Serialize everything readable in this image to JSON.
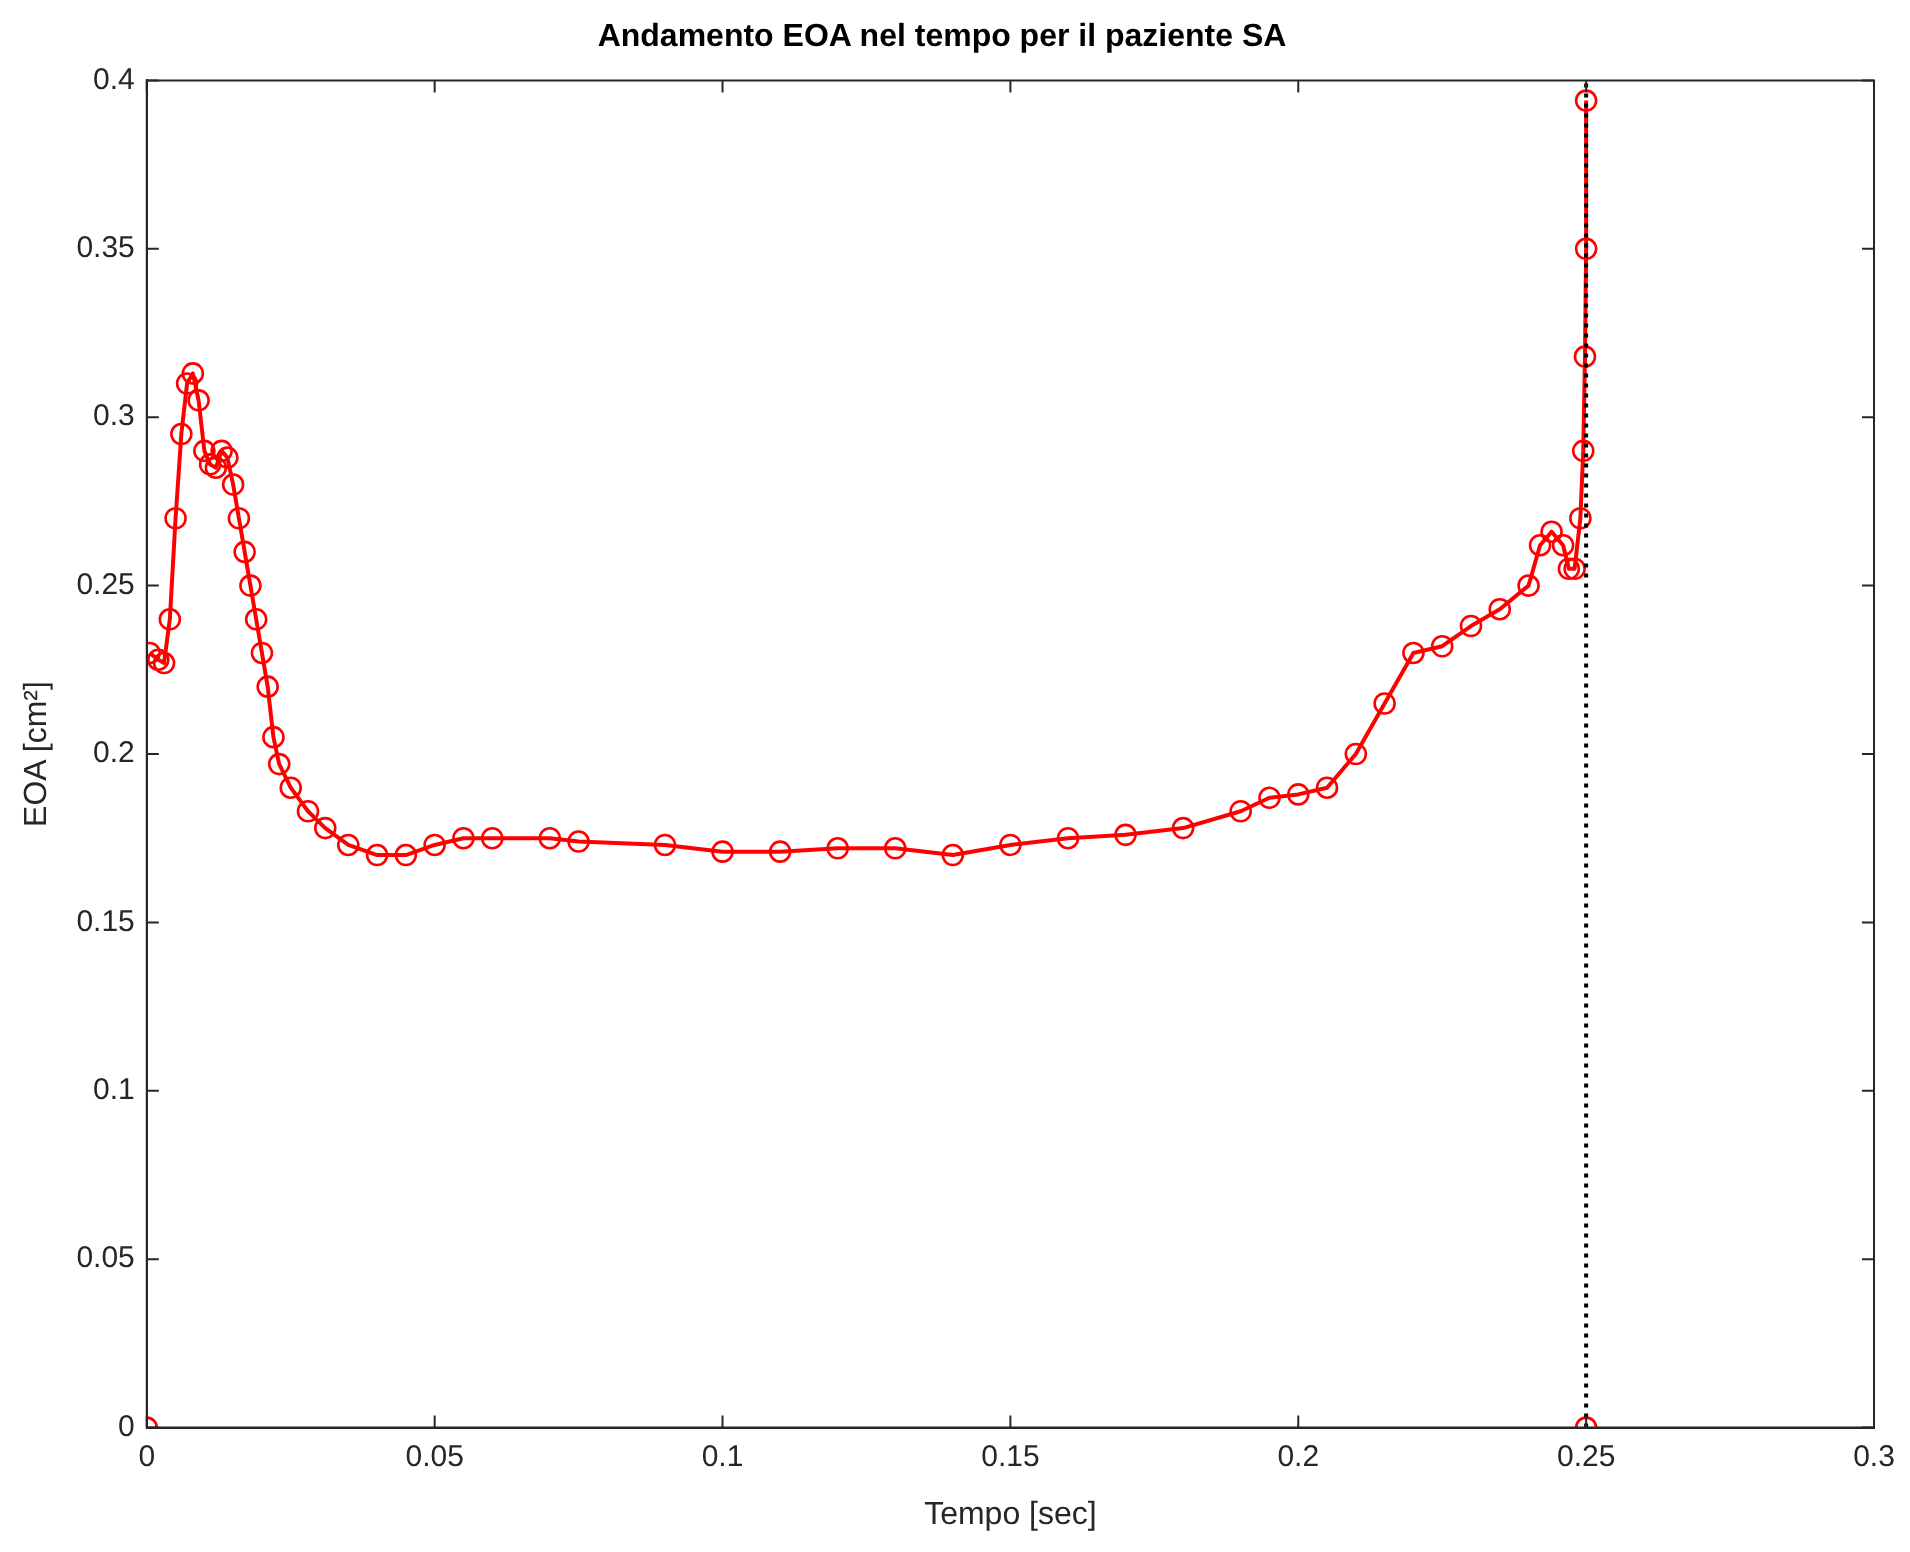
{
  "chart_data": {
    "type": "line",
    "title": "Andamento EOA nel tempo per il paziente SA",
    "xlabel": "Tempo [sec]",
    "ylabel": "EOA [cm²]",
    "xlim": [
      0,
      0.3
    ],
    "xticks": [
      0,
      0.05,
      0.1,
      0.15,
      0.2,
      0.25,
      0.3
    ],
    "ylim": [
      0,
      0.4
    ],
    "yticks": [
      0,
      0.05,
      0.1,
      0.15,
      0.2,
      0.25,
      0.3,
      0.35,
      0.4
    ],
    "grid": false,
    "legend": false,
    "ref_lines": [
      {
        "axis": "x",
        "value": 0.25,
        "color": "#000000",
        "line_style": "dotted"
      }
    ],
    "series": [
      {
        "color": "#ff0000",
        "marker": "circle",
        "line_style": "solid",
        "x": [
          0.0005,
          0.002,
          0.003,
          0.004,
          0.005,
          0.006,
          0.007,
          0.008,
          0.009,
          0.01,
          0.011,
          0.012,
          0.013,
          0.014,
          0.015,
          0.016,
          0.017,
          0.018,
          0.019,
          0.02,
          0.021,
          0.022,
          0.023,
          0.025,
          0.028,
          0.031,
          0.035,
          0.04,
          0.045,
          0.05,
          0.055,
          0.06,
          0.07,
          0.075,
          0.09,
          0.1,
          0.11,
          0.12,
          0.13,
          0.14,
          0.15,
          0.16,
          0.17,
          0.18,
          0.19,
          0.195,
          0.2,
          0.205,
          0.21,
          0.215,
          0.22,
          0.225,
          0.23,
          0.235,
          0.24,
          0.242,
          0.244,
          0.246,
          0.247,
          0.248,
          0.249,
          0.2495,
          0.2498,
          0.25,
          0.25
        ],
        "values": [
          0.23,
          0.228,
          0.227,
          0.24,
          0.27,
          0.295,
          0.31,
          0.313,
          0.305,
          0.29,
          0.286,
          0.285,
          0.29,
          0.288,
          0.28,
          0.27,
          0.26,
          0.25,
          0.24,
          0.23,
          0.22,
          0.205,
          0.197,
          0.19,
          0.183,
          0.178,
          0.173,
          0.17,
          0.17,
          0.173,
          0.175,
          0.175,
          0.175,
          0.174,
          0.173,
          0.171,
          0.171,
          0.172,
          0.172,
          0.17,
          0.173,
          0.175,
          0.176,
          0.178,
          0.183,
          0.187,
          0.188,
          0.19,
          0.2,
          0.215,
          0.23,
          0.232,
          0.238,
          0.243,
          0.25,
          0.262,
          0.266,
          0.262,
          0.255,
          0.255,
          0.27,
          0.29,
          0.318,
          0.35,
          0.394
        ]
      },
      {
        "type": "scatter",
        "color": "#ff0000",
        "marker": "circle",
        "x": [
          0,
          0.25
        ],
        "values": [
          0,
          0
        ]
      }
    ]
  }
}
